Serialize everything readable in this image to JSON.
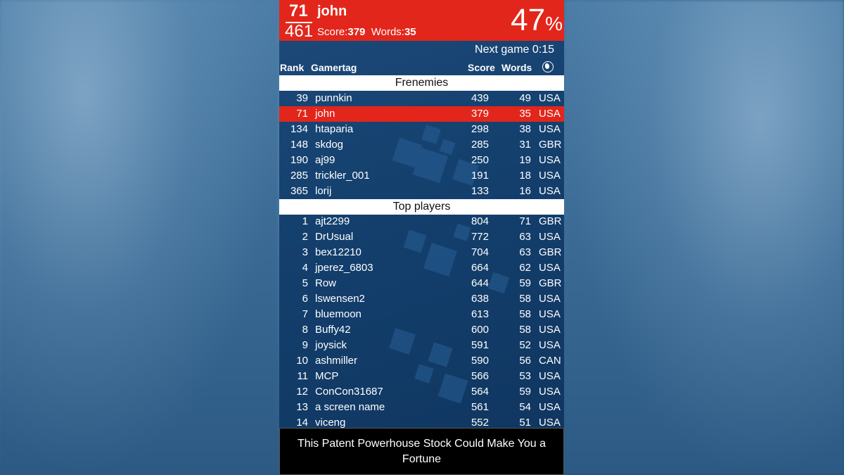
{
  "header": {
    "rank": "71",
    "player": "john",
    "total_players": "461",
    "score_label": "Score:",
    "score": "379",
    "words_label": "Words:",
    "words": "35",
    "percent": "47",
    "percent_sign": "%"
  },
  "next_game": "Next game 0:15",
  "columns": {
    "rank": "Rank",
    "gamertag": "Gamertag",
    "score": "Score",
    "words": "Words",
    "country_icon": "globe-icon"
  },
  "sections": {
    "frenemies": "Frenemies",
    "top_players": "Top players"
  },
  "frenemies": [
    {
      "rank": "39",
      "name": "punnkin",
      "score": "439",
      "words": "49",
      "country": "USA"
    },
    {
      "rank": "71",
      "name": "john",
      "score": "379",
      "words": "35",
      "country": "USA"
    },
    {
      "rank": "134",
      "name": "htaparia",
      "score": "298",
      "words": "38",
      "country": "USA"
    },
    {
      "rank": "148",
      "name": "skdog",
      "score": "285",
      "words": "31",
      "country": "GBR"
    },
    {
      "rank": "190",
      "name": "aj99",
      "score": "250",
      "words": "19",
      "country": "USA"
    },
    {
      "rank": "285",
      "name": "trickler_001",
      "score": "191",
      "words": "18",
      "country": "USA"
    },
    {
      "rank": "365",
      "name": "lorij",
      "score": "133",
      "words": "16",
      "country": "USA"
    }
  ],
  "top_players": [
    {
      "rank": "1",
      "name": "ajt2299",
      "score": "804",
      "words": "71",
      "country": "GBR"
    },
    {
      "rank": "2",
      "name": "DrUsual",
      "score": "772",
      "words": "63",
      "country": "USA"
    },
    {
      "rank": "3",
      "name": "bex12210",
      "score": "704",
      "words": "63",
      "country": "GBR"
    },
    {
      "rank": "4",
      "name": "jperez_6803",
      "score": "664",
      "words": "62",
      "country": "USA"
    },
    {
      "rank": "5",
      "name": "Row",
      "score": "644",
      "words": "59",
      "country": "GBR"
    },
    {
      "rank": "6",
      "name": "lswensen2",
      "score": "638",
      "words": "58",
      "country": "USA"
    },
    {
      "rank": "7",
      "name": "bluemoon",
      "score": "613",
      "words": "58",
      "country": "USA"
    },
    {
      "rank": "8",
      "name": "Buffy42",
      "score": "600",
      "words": "58",
      "country": "USA"
    },
    {
      "rank": "9",
      "name": "joysick",
      "score": "591",
      "words": "52",
      "country": "USA"
    },
    {
      "rank": "10",
      "name": "ashmiller",
      "score": "590",
      "words": "56",
      "country": "CAN"
    },
    {
      "rank": "11",
      "name": "MCP",
      "score": "566",
      "words": "53",
      "country": "USA"
    },
    {
      "rank": "12",
      "name": "ConCon31687",
      "score": "564",
      "words": "59",
      "country": "USA"
    },
    {
      "rank": "13",
      "name": "a screen name",
      "score": "561",
      "words": "54",
      "country": "USA"
    },
    {
      "rank": "14",
      "name": "viceng",
      "score": "552",
      "words": "51",
      "country": "USA"
    }
  ],
  "ad": "This Patent Powerhouse Stock Could Make You a Fortune",
  "colors": {
    "accent": "#e3261b",
    "panel": "#14406e"
  }
}
